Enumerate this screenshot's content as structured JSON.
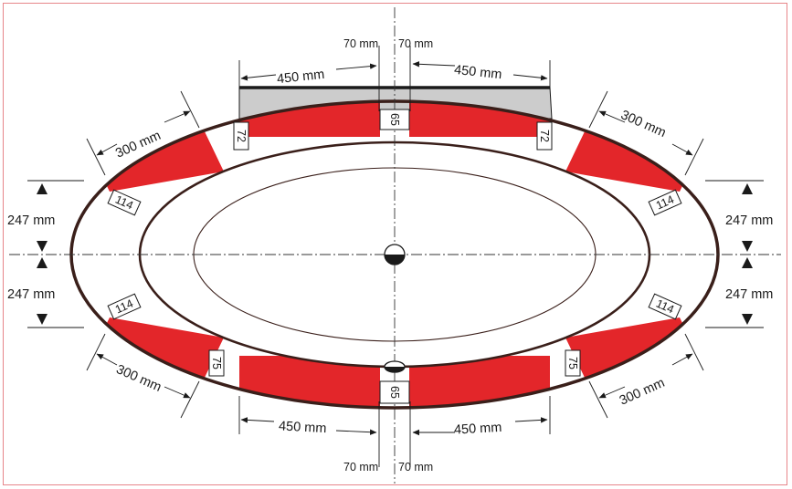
{
  "colors": {
    "red_zone": "#e3262a",
    "tub_outline": "#3a1f1a",
    "platform_fill": "#cccccc",
    "frame": "#e7868a"
  },
  "labels": {
    "top_left_70": "70 mm",
    "top_right_70": "70 mm",
    "top_left_450": "450 mm",
    "top_right_450": "450 mm",
    "upper_left_300": "300 mm",
    "upper_right_300": "300 mm",
    "left_upper_247": "247 mm",
    "left_lower_247": "247 mm",
    "right_upper_247": "247 mm",
    "right_lower_247": "247 mm",
    "lower_left_300": "300 mm",
    "lower_right_300": "300 mm",
    "bottom_left_450": "450 mm",
    "bottom_right_450": "450 mm",
    "bottom_left_70": "70 mm",
    "bottom_right_70": "70 mm"
  },
  "boxes": {
    "top_center": "65",
    "top_left": "72",
    "top_right": "72",
    "upper_left": "114",
    "upper_right": "114",
    "lower_left": "114",
    "lower_right": "114",
    "bottom_left": "75",
    "bottom_right": "75",
    "bottom_center": "65"
  },
  "icons": [
    "drain-icon",
    "overflow-icon"
  ]
}
